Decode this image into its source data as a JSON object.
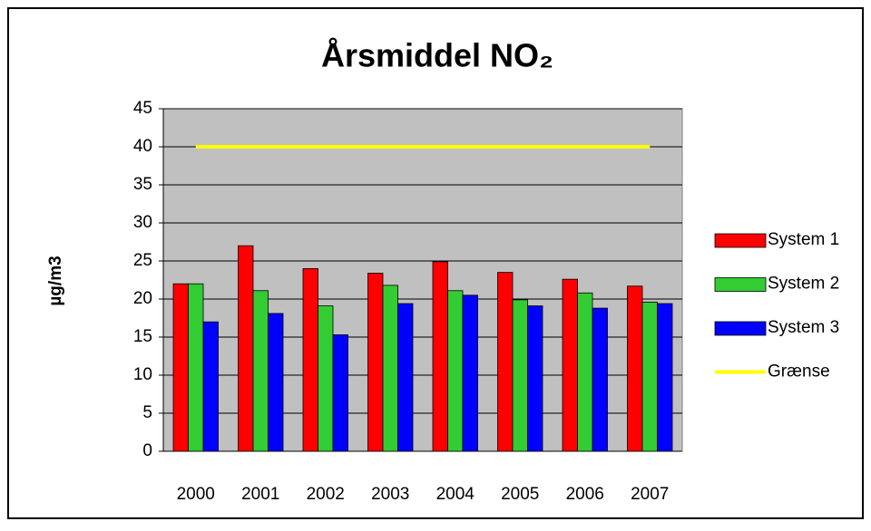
{
  "chart_data": {
    "type": "bar",
    "title": "Årsmiddel NO₂",
    "y_label": "µg/m3",
    "categories": [
      "2000",
      "2001",
      "2002",
      "2003",
      "2004",
      "2005",
      "2006",
      "2007"
    ],
    "series": [
      {
        "name": "System 1",
        "color": "#ff0000",
        "type": "bar",
        "values": [
          22,
          27,
          24,
          23.4,
          24.9,
          23.5,
          22.6,
          21.7
        ]
      },
      {
        "name": "System 2",
        "color": "#33cc33",
        "type": "bar",
        "values": [
          22,
          21.1,
          19.1,
          21.8,
          21.1,
          19.9,
          20.8,
          19.6
        ]
      },
      {
        "name": "System 3",
        "color": "#0000ff",
        "type": "bar",
        "values": [
          17,
          18.1,
          15.3,
          19.4,
          20.5,
          19.1,
          18.8,
          19.4
        ]
      },
      {
        "name": "Grænse",
        "color": "#ffff00",
        "type": "line",
        "values": [
          40,
          40,
          40,
          40,
          40,
          40,
          40,
          40
        ]
      }
    ],
    "ylim": [
      0,
      45
    ],
    "yticks": [
      0,
      5,
      10,
      15,
      20,
      25,
      30,
      35,
      40,
      45
    ],
    "grid": true,
    "legend": "right"
  }
}
